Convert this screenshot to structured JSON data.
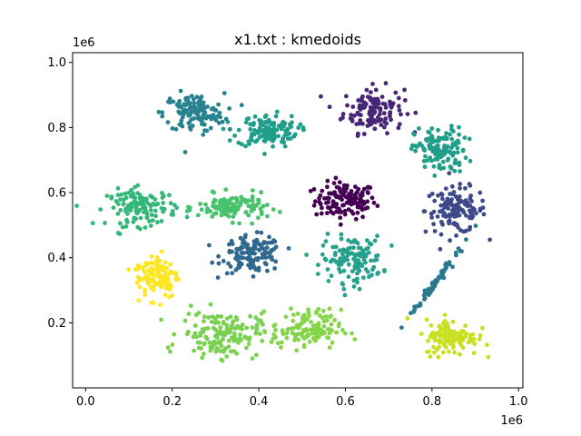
{
  "chart_data": {
    "type": "scatter",
    "title": "x1.txt : kmedoids",
    "xlabel": "",
    "ylabel": "",
    "x_offset_label": "1e6",
    "y_offset_label": "1e6",
    "xlim": [
      -0.03,
      1.01
    ],
    "ylim": [
      0.0,
      1.03
    ],
    "x_ticks": [
      0.0,
      0.2,
      0.4,
      0.6,
      0.8,
      1.0
    ],
    "x_tick_labels": [
      "0.0",
      "0.2",
      "0.4",
      "0.6",
      "0.8",
      "1.0"
    ],
    "y_ticks": [
      0.2,
      0.4,
      0.6,
      0.8,
      1.0
    ],
    "y_tick_labels": [
      "0.2",
      "0.4",
      "0.6",
      "0.8",
      "1.0"
    ],
    "grid": false,
    "legend": "none",
    "clusters": [
      {
        "color": "#440154",
        "center": [
          0.6,
          0.575
        ],
        "spread": [
          0.035,
          0.028
        ],
        "n": 130
      },
      {
        "color": "#482677",
        "center": [
          0.665,
          0.855
        ],
        "spread": [
          0.035,
          0.035
        ],
        "n": 130
      },
      {
        "color": "#3e4989",
        "center": [
          0.855,
          0.545
        ],
        "spread": [
          0.035,
          0.035
        ],
        "n": 130
      },
      {
        "color": "#31688e",
        "center": [
          0.385,
          0.41
        ],
        "spread": [
          0.035,
          0.028
        ],
        "n": 130
      },
      {
        "color": "#26828e",
        "center": [
          0.25,
          0.845
        ],
        "spread": [
          0.035,
          0.03
        ],
        "n": 130
      },
      {
        "color": "#1f9e89",
        "center": [
          0.42,
          0.79
        ],
        "spread": [
          0.035,
          0.025
        ],
        "n": 130
      },
      {
        "color": "#1f9e89",
        "center": [
          0.82,
          0.73
        ],
        "spread": [
          0.03,
          0.035
        ],
        "n": 130
      },
      {
        "color": "#25a18e",
        "center": [
          0.615,
          0.395
        ],
        "spread": [
          0.035,
          0.035
        ],
        "n": 130
      },
      {
        "color": "#35b779",
        "center": [
          0.13,
          0.555
        ],
        "spread": [
          0.04,
          0.028
        ],
        "n": 130
      },
      {
        "color": "#4ac16d",
        "center": [
          0.34,
          0.555
        ],
        "spread": [
          0.04,
          0.02
        ],
        "n": 120
      },
      {
        "color": "#2a788e",
        "center": [
          0.805,
          0.32
        ],
        "spread": [
          0.012,
          0.06
        ],
        "n": 70,
        "tilt": true
      },
      {
        "color": "#7ad151",
        "center": [
          0.31,
          0.165
        ],
        "spread": [
          0.045,
          0.035
        ],
        "n": 150
      },
      {
        "color": "#86d549",
        "center": [
          0.51,
          0.18
        ],
        "spread": [
          0.04,
          0.03
        ],
        "n": 130
      },
      {
        "color": "#fde725",
        "center": [
          0.165,
          0.345
        ],
        "spread": [
          0.025,
          0.035
        ],
        "n": 120
      },
      {
        "color": "#c8e020",
        "center": [
          0.845,
          0.155
        ],
        "spread": [
          0.03,
          0.028
        ],
        "n": 120
      }
    ]
  }
}
